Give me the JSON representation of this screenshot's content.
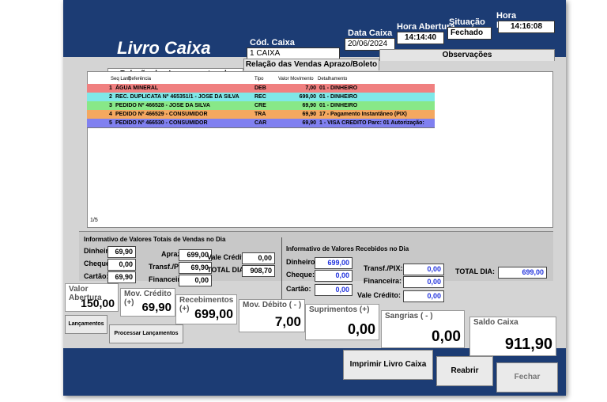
{
  "header": {
    "title": "Livro Caixa",
    "cod_caixa_label": "Cód. Caixa",
    "cod_caixa": "1  CAIXA",
    "data_caixa_label": "Data Caixa",
    "data_caixa": "20/06/2024",
    "hora_abertura_label": "Hora Abertura",
    "hora_abertura": "14:14:40",
    "situacao_label": "Situação",
    "situacao": "Fechado",
    "hora_fechamento_label": "Hora Fechamento",
    "hora_fechamento": "14:16:08"
  },
  "tabs": [
    "Relação dos Lançamentos de Caixa",
    "Relação das Vendas Aprazo/Boleto",
    "Observações"
  ],
  "table": {
    "columns": [
      "Seq Lanç",
      "Referência",
      "Tipo",
      "Valor Movimento",
      "Detalhamento"
    ],
    "rows": [
      [
        "1",
        "ÁGUA MINERAL",
        "DEB",
        "7,00",
        "01 - DINHEIRO"
      ],
      [
        "2",
        "REC. DUPLICATA Nº 465351/1 - JOSE DA SILVA",
        "REC",
        "699,00",
        "01 - DINHEIRO"
      ],
      [
        "3",
        "PEDIDO Nº 466528 - JOSE DA SILVA",
        "CRE",
        "69,90",
        "01 - DINHEIRO"
      ],
      [
        "4",
        "PEDIDO Nº 466529 - CONSUMIDOR",
        "TRA",
        "69,90",
        "17 - Pagamento Instantâneo (PIX)"
      ],
      [
        "5",
        "PEDIDO Nº 466530 - CONSUMIDOR",
        "CAR",
        "69,90",
        "1 - VISA CREDITO Parc: 01 Autorização:"
      ]
    ],
    "record": "1/5"
  },
  "vendas": {
    "title": "Informativo de Valores Totais de Vendas no Dia",
    "dinheiro_label": "Dinheiro:",
    "dinheiro": "69,90",
    "cheque_label": "Cheque:",
    "cheque": "0,00",
    "cartao_label": "Cartão:",
    "cartao": "69,90",
    "aprazo_label": "Aprazo:",
    "aprazo": "699,00",
    "pix_label": "Transf./PIX:",
    "pix": "69,90",
    "financeira_label": "Financeira:",
    "financeira": "0,00",
    "vale_label": "Vale Crédito:",
    "vale": "0,00",
    "total_label": "TOTAL DIA:",
    "total": "908,70"
  },
  "recebidos": {
    "title": "Informativo de Valores Recebidos no Dia",
    "dinheiro_label": "Dinheiro:",
    "dinheiro": "699,00",
    "cheque_label": "Cheque:",
    "cheque": "0,00",
    "cartao_label": "Cartão:",
    "cartao": "0,00",
    "pix_label": "Transf./PIX:",
    "pix": "0,00",
    "financeira_label": "Financeira:",
    "financeira": "0,00",
    "vale_label": "Vale Crédito:",
    "vale": "0,00",
    "total_label": "TOTAL DIA:",
    "total": "699,00"
  },
  "summary": [
    {
      "label": "Valor Abertura",
      "value": "150,00"
    },
    {
      "label": "Mov. Crédito (+)",
      "value": "69,90"
    },
    {
      "label": "Recebimentos (+)",
      "value": "699,00"
    },
    {
      "label": "Mov. Débito ( - )",
      "value": "7,00"
    },
    {
      "label": "Suprimentos (+)",
      "value": "0,00"
    },
    {
      "label": "Sangrias ( - )",
      "value": "0,00"
    },
    {
      "label": "Saldo Caixa",
      "value": "911,90"
    }
  ],
  "side_buttons": [
    "Lançamentos",
    "Processar Lançamentos"
  ],
  "buttons": [
    "Imprimir Livro Caixa",
    "Reabrir",
    "Fechar"
  ]
}
